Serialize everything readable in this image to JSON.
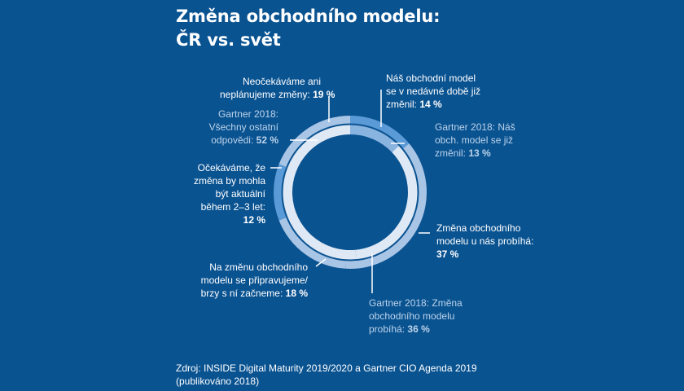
{
  "title": {
    "line1": "Změna obchodního modelu:",
    "line2": "ČR vs. svět"
  },
  "colors": {
    "background": "#0a5391",
    "cz_ring_base": "#a9c5e6",
    "cz_ring_highlight": "#5a9ad6",
    "gartner_ring_base": "#dfe9f5",
    "gartner_ring_highlight": "#8ab4e0",
    "separator": "#0a5391",
    "leader": "#ffffff"
  },
  "chart_data": {
    "type": "pie",
    "rings": [
      {
        "name": "ČR",
        "position": "outer",
        "slices": [
          {
            "label": "Náš obchodní model se v nedávné době již změnil:",
            "value": 14,
            "highlight": true
          },
          {
            "label": "Změna obchodního modelu u nás probíhá:",
            "value": 37,
            "highlight": false
          },
          {
            "label": "Na změnu obchodního modelu se připravujeme/ brzy s ní začneme:",
            "value": 18,
            "highlight": false
          },
          {
            "label": "Očekáváme, že změna by mohla být aktuální během 2–3 let:",
            "value": 12,
            "highlight": true
          },
          {
            "label": "Neočekáváme ani neplánujeme změny:",
            "value": 19,
            "highlight": false
          }
        ]
      },
      {
        "name": "Gartner 2018",
        "position": "inner",
        "slices": [
          {
            "label": "Gartner 2018: Náš obch. model se již změnil:",
            "value": 13,
            "highlight": true
          },
          {
            "label": "Gartner 2018: Změna obchodního modelu probíhá:",
            "value": 36,
            "highlight": false
          },
          {
            "label": "Gartner 2018: Všechny ostatní odpovědi:",
            "value": 52,
            "highlight": false
          }
        ]
      }
    ]
  },
  "labels": {
    "neocekavame": {
      "lines": [
        "Neočekáváme ani",
        "neplánujeme změny:"
      ],
      "value": "19 %"
    },
    "zmenil": {
      "lines": [
        "Náš obchodní model",
        "se v nedávné době již",
        "změnil:"
      ],
      "value": "14 %"
    },
    "gartner_zmenil": {
      "lines": [
        "Gartner 2018: Náš",
        "obch. model se již",
        "změnil:"
      ],
      "value": "13 %"
    },
    "gartner_ostatni": {
      "lines": [
        "Gartner 2018:",
        "Všechny ostatní",
        "odpovědi:"
      ],
      "value": "52 %"
    },
    "ocekavame": {
      "lines": [
        "Očekáváme, že",
        "změna by mohla",
        "být aktuální",
        "během 2–3 let:"
      ],
      "value": "12 %"
    },
    "probiha": {
      "lines": [
        "Změna obchodního",
        "modelu u nás probíhá:"
      ],
      "value": "37 %"
    },
    "pripravujeme": {
      "lines": [
        "Na změnu obchodního",
        "modelu se připravujeme/",
        "brzy s ní začneme:"
      ],
      "value": "18 %"
    },
    "gartner_probiha": {
      "lines": [
        "Gartner 2018: Změna",
        "obchodního modelu",
        "probíhá:"
      ],
      "value": "36 %"
    }
  },
  "source": {
    "line1": "Zdroj: INSIDE Digital Maturity 2019/2020 a Gartner CIO Agenda 2019",
    "line2": "(publikováno 2018)"
  }
}
